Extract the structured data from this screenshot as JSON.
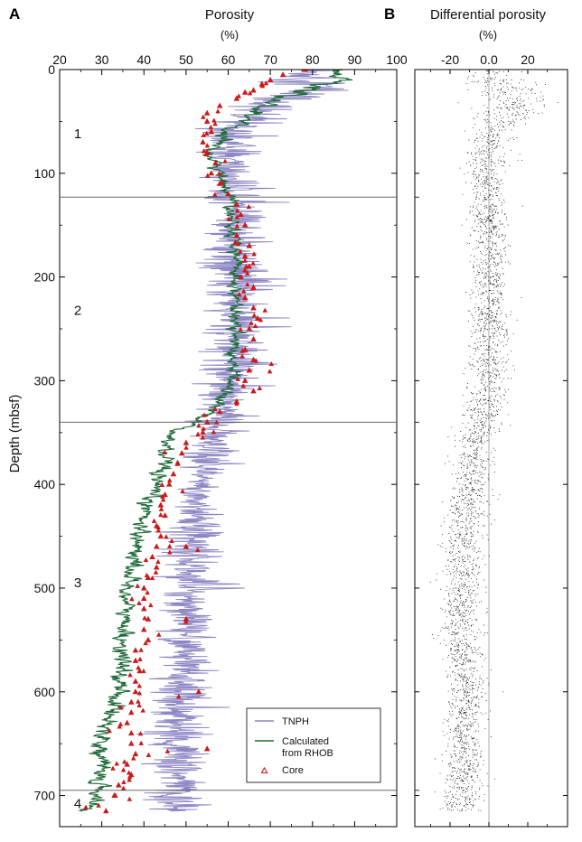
{
  "panel_a": {
    "letter": "A",
    "title": "Porosity",
    "unit": "(%)",
    "ylabel": "Depth (mbsf)"
  },
  "panel_b": {
    "letter": "B",
    "title": "Differential porosity",
    "unit": "(%)"
  },
  "legend": {
    "tnph": "TNPH",
    "rhob_line1": "Calculated",
    "rhob_line2": "from RHOB",
    "core": "Core"
  },
  "colors": {
    "tnph": "#8c86c4",
    "rhob": "#1f6b3a",
    "core": "#cc1a1a",
    "diff_points": "#222222",
    "unit_boundary": "#555555"
  },
  "chart_data": [
    {
      "type": "line",
      "panel": "A",
      "title": "Porosity",
      "xlabel": "Porosity (%)",
      "ylabel": "Depth (mbsf)",
      "xlim": [
        20,
        100
      ],
      "ylim": [
        730,
        0
      ],
      "x_ticks": [
        20,
        30,
        40,
        50,
        60,
        70,
        80,
        90,
        100
      ],
      "y_ticks": [
        0,
        100,
        200,
        300,
        400,
        500,
        600,
        700
      ],
      "unit_boundaries": [
        123,
        340,
        695
      ],
      "units": [
        {
          "label": "1",
          "depth": 62
        },
        {
          "label": "2",
          "depth": 232
        },
        {
          "label": "3",
          "depth": 495
        },
        {
          "label": "4",
          "depth": 708
        }
      ],
      "series": [
        {
          "name": "TNPH",
          "kind": "line",
          "depth": [
            0,
            10,
            20,
            30,
            40,
            60,
            80,
            100,
            123,
            160,
            200,
            240,
            280,
            320,
            340,
            360,
            400,
            450,
            500,
            550,
            600,
            650,
            700,
            715
          ],
          "mean": [
            78,
            82,
            80,
            72,
            67,
            61,
            60,
            60,
            62,
            62,
            62,
            62,
            62,
            60,
            58,
            55,
            53,
            52,
            51,
            50,
            49,
            48,
            48,
            47
          ],
          "scatter": [
            8,
            10,
            10,
            8,
            7,
            6,
            6,
            6,
            6,
            6,
            7,
            7,
            6,
            6,
            6,
            5,
            5,
            6,
            6,
            6,
            6,
            6,
            6,
            6
          ]
        },
        {
          "name": "Calculated from RHOB",
          "kind": "line",
          "depth": [
            0,
            10,
            20,
            30,
            40,
            50,
            60,
            80,
            100,
            123,
            200,
            300,
            330,
            340,
            350,
            370,
            400,
            450,
            500,
            550,
            600,
            650,
            700,
            715
          ],
          "mean": [
            85,
            88,
            78,
            70,
            66,
            64,
            58,
            56,
            58,
            61,
            62,
            61,
            56,
            52,
            46,
            45,
            42,
            39,
            36,
            35,
            34,
            30,
            29,
            26
          ],
          "scatter": [
            2,
            3,
            4,
            3,
            2,
            2,
            2,
            2,
            1.5,
            1.5,
            1.5,
            1.5,
            2,
            2,
            2,
            2,
            2,
            2,
            2,
            2,
            2,
            2,
            2,
            2
          ]
        },
        {
          "name": "Core",
          "kind": "scatter",
          "points": [
            [
              78,
              0
            ],
            [
              73,
              5
            ],
            [
              70,
              10
            ],
            [
              68,
              14
            ],
            [
              66,
              20
            ],
            [
              64,
              22
            ],
            [
              62,
              28
            ],
            [
              58,
              35
            ],
            [
              55,
              42
            ],
            [
              55,
              50
            ],
            [
              56,
              60
            ],
            [
              54,
              70
            ],
            [
              55,
              80
            ],
            [
              57,
              90
            ],
            [
              56,
              100
            ],
            [
              58,
              110
            ],
            [
              60,
              120
            ],
            [
              62,
              130
            ],
            [
              63,
              140
            ],
            [
              64,
              150
            ],
            [
              62,
              160
            ],
            [
              65,
              170
            ],
            [
              64,
              180
            ],
            [
              65,
              190
            ],
            [
              63,
              200
            ],
            [
              66,
              210
            ],
            [
              64,
              220
            ],
            [
              66,
              230
            ],
            [
              67,
              240
            ],
            [
              65,
              250
            ],
            [
              66,
              260
            ],
            [
              64,
              270
            ],
            [
              66,
              280
            ],
            [
              65,
              290
            ],
            [
              64,
              300
            ],
            [
              66,
              310
            ],
            [
              62,
              320
            ],
            [
              58,
              330
            ],
            [
              55,
              340
            ],
            [
              54,
              350
            ],
            [
              50,
              360
            ],
            [
              49,
              370
            ],
            [
              48,
              380
            ],
            [
              47,
              390
            ],
            [
              46,
              400
            ],
            [
              45,
              410
            ],
            [
              44,
              420
            ],
            [
              45,
              430
            ],
            [
              43,
              440
            ],
            [
              44,
              450
            ],
            [
              43,
              460
            ],
            [
              42,
              470
            ],
            [
              43,
              480
            ],
            [
              41,
              490
            ],
            [
              40,
              500
            ],
            [
              40,
              510
            ],
            [
              40,
              520
            ],
            [
              41,
              530
            ],
            [
              40,
              540
            ],
            [
              41,
              550
            ],
            [
              38,
              560
            ],
            [
              38,
              570
            ],
            [
              39,
              580
            ],
            [
              38,
              590
            ],
            [
              38,
              600
            ],
            [
              37,
              610
            ],
            [
              37,
              620
            ],
            [
              36,
              630
            ],
            [
              37,
              640
            ],
            [
              37,
              650
            ],
            [
              38,
              660
            ],
            [
              36,
              670
            ],
            [
              37,
              680
            ],
            [
              34,
              690
            ],
            [
              33,
              700
            ],
            [
              31,
              715
            ],
            [
              50,
              460
            ],
            [
              50,
              530
            ],
            [
              53,
              600
            ],
            [
              55,
              655
            ]
          ]
        }
      ]
    },
    {
      "type": "scatter",
      "panel": "B",
      "title": "Differential porosity",
      "xlabel": "Differential porosity (%)",
      "x_ticks": [
        -20,
        0,
        20
      ],
      "x_tick_labels": [
        "-20",
        "0.0",
        "20"
      ],
      "ylim": [
        730,
        0
      ],
      "zero_line": 0,
      "series": [
        {
          "name": "Differential porosity",
          "depth": [
            0,
            20,
            40,
            60,
            100,
            150,
            200,
            250,
            300,
            330,
            360,
            400,
            450,
            500,
            550,
            600,
            650,
            700,
            715
          ],
          "mean": [
            -5,
            10,
            12,
            2,
            -2,
            0,
            0,
            0,
            0,
            -3,
            -8,
            -10,
            -12,
            -14,
            -14,
            -12,
            -13,
            -14,
            -15
          ],
          "scatter": [
            7,
            9,
            9,
            6,
            5,
            5,
            5,
            5,
            5,
            5,
            5,
            5,
            5,
            5,
            5,
            5,
            5,
            5,
            5
          ],
          "point_count": 4500
        }
      ]
    }
  ]
}
